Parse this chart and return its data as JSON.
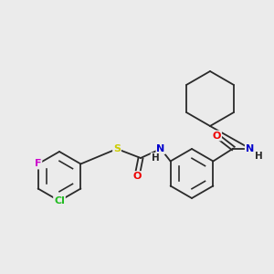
{
  "bg_color": "#ebebeb",
  "bond_color": "#2a2a2a",
  "atom_colors": {
    "F": "#cc00cc",
    "Cl": "#22bb22",
    "S": "#cccc00",
    "O": "#ee0000",
    "N": "#0000cc",
    "H": "#2a2a2a",
    "C": "#2a2a2a"
  },
  "font_size": 8.0,
  "lw": 1.3
}
